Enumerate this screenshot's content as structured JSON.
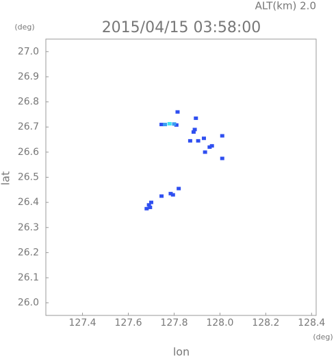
{
  "chart_data": {
    "type": "scatter",
    "title": "2015/04/15 03:58:00",
    "subtitle": "ALT(km) 2.0",
    "y_unit": "(deg)",
    "x_unit": "(deg)",
    "x_label": "lon",
    "y_label": "lat",
    "xlim": [
      127.24,
      128.42
    ],
    "ylim": [
      25.95,
      27.05
    ],
    "xticks": [
      127.4,
      127.6,
      127.8,
      {
        "value": 128.0,
        "label": "128.0"
      },
      128.2,
      128.4
    ],
    "yticks": [
      {
        "value": 26.0,
        "label": "26.0"
      },
      26.1,
      26.2,
      26.3,
      26.4,
      26.5,
      26.6,
      26.7,
      26.8,
      26.9,
      {
        "value": 27.0,
        "label": "27.0"
      }
    ],
    "series": [
      {
        "color": "#2f4ff0",
        "x": [
          127.745,
          127.81,
          127.815,
          127.89,
          127.885,
          127.895,
          127.87,
          127.905,
          127.93,
          127.955,
          127.965,
          127.935,
          128.01,
          128.01,
          127.7,
          127.69,
          127.695,
          127.68,
          127.745,
          127.785,
          127.795,
          127.82
        ],
        "values": [
          26.71,
          26.708,
          26.76,
          26.69,
          26.68,
          26.735,
          26.645,
          26.645,
          26.655,
          26.62,
          26.625,
          26.6,
          26.665,
          26.575,
          26.4,
          26.39,
          26.38,
          26.375,
          26.425,
          26.435,
          26.43,
          26.455
        ]
      },
      {
        "color": "#3a9cf2",
        "x": [
          127.76,
          127.8
        ],
        "values": [
          26.71,
          26.712
        ]
      },
      {
        "color": "#44e4ee",
        "x": [
          127.78
        ],
        "values": [
          26.713
        ]
      }
    ]
  }
}
